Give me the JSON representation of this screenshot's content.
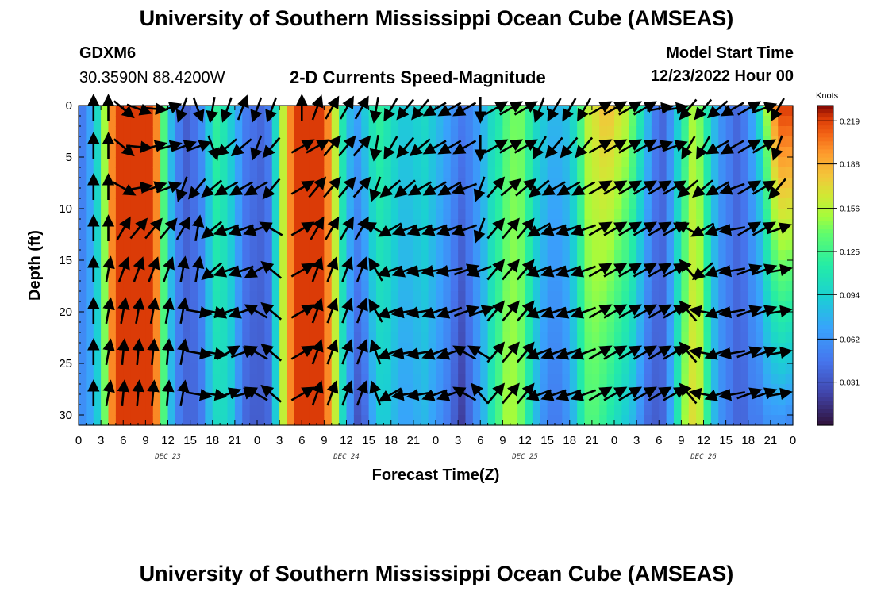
{
  "page": {
    "title_top": "University of Southern Mississippi Ocean Cube (AMSEAS)",
    "title_bottom": "University of Southern Mississippi Ocean Cube (AMSEAS)",
    "station_id": "GDXM6",
    "coordinates": "30.3590N  88.4200W",
    "plot_title": "2-D Currents Speed-Magnitude",
    "model_start_label": "Model Start Time",
    "model_start_value": "12/23/2022 Hour 00"
  },
  "chart_data": {
    "type": "heatmap",
    "title": "2-D Currents Speed-Magnitude",
    "xlabel": "Forecast Time(Z)",
    "ylabel": "Depth (ft)",
    "xlim": [
      0,
      96
    ],
    "ylim": [
      0,
      31
    ],
    "y_inverted": true,
    "x_tick_values": [
      0,
      3,
      6,
      9,
      12,
      15,
      18,
      21,
      24,
      27,
      30,
      33,
      36,
      39,
      42,
      45,
      48,
      51,
      54,
      57,
      60,
      63,
      66,
      69,
      72,
      75,
      78,
      81,
      84,
      87,
      90,
      93,
      96
    ],
    "x_tick_labels": [
      "0",
      "3",
      "6",
      "9",
      "12",
      "15",
      "18",
      "21",
      "0",
      "3",
      "6",
      "9",
      "12",
      "15",
      "18",
      "21",
      "0",
      "3",
      "6",
      "9",
      "12",
      "15",
      "18",
      "21",
      "0",
      "3",
      "6",
      "9",
      "12",
      "15",
      "18",
      "21",
      "0"
    ],
    "day_labels": [
      {
        "text": "DEC 23",
        "hour": 12
      },
      {
        "text": "DEC 24",
        "hour": 36
      },
      {
        "text": "DEC 25",
        "hour": 60
      },
      {
        "text": "DEC 26",
        "hour": 84
      }
    ],
    "y_tick_values": [
      0,
      5,
      10,
      15,
      20,
      25,
      30
    ],
    "y_tick_labels": [
      "0",
      "5",
      "10",
      "15",
      "20",
      "25",
      "30"
    ],
    "colorbar": {
      "unit": "Knots",
      "min": 0.0,
      "max": 0.23,
      "tick_values": [
        0.031,
        0.062,
        0.094,
        0.125,
        0.156,
        0.188,
        0.219
      ],
      "tick_labels": [
        "0.031",
        "0.062",
        "0.094",
        "0.125",
        "0.156",
        "0.188",
        "0.219"
      ]
    },
    "speed_profile_hours": [
      0,
      1,
      2,
      3,
      4,
      5,
      6,
      7,
      8,
      9,
      10,
      11,
      12,
      13,
      14,
      15,
      16,
      17,
      18,
      19,
      20,
      21,
      22,
      23,
      24,
      25,
      26,
      27,
      28,
      29,
      30,
      31,
      32,
      33,
      34,
      35,
      36,
      37,
      38,
      39,
      40,
      41,
      42,
      43,
      44,
      45,
      46,
      47,
      48,
      49,
      50,
      51,
      52,
      53,
      54,
      55,
      56,
      57,
      58,
      59,
      60,
      61,
      62,
      63,
      64,
      65,
      66,
      67,
      68,
      69,
      70,
      71,
      72,
      73,
      74,
      75,
      76,
      77,
      78,
      79,
      80,
      81,
      82,
      83,
      84,
      85,
      86,
      87,
      88,
      89,
      90,
      91,
      92,
      93,
      94,
      95,
      96
    ],
    "speed_surface": [
      0.05,
      0.07,
      0.1,
      0.15,
      0.2,
      0.22,
      0.22,
      0.22,
      0.22,
      0.22,
      0.2,
      0.13,
      0.08,
      0.05,
      0.035,
      0.045,
      0.06,
      0.09,
      0.12,
      0.11,
      0.09,
      0.07,
      0.05,
      0.045,
      0.04,
      0.05,
      0.1,
      0.16,
      0.2,
      0.22,
      0.22,
      0.22,
      0.22,
      0.2,
      0.16,
      0.11,
      0.08,
      0.07,
      0.09,
      0.11,
      0.12,
      0.11,
      0.1,
      0.09,
      0.09,
      0.095,
      0.1,
      0.09,
      0.08,
      0.07,
      0.06,
      0.05,
      0.055,
      0.065,
      0.08,
      0.1,
      0.11,
      0.13,
      0.14,
      0.14,
      0.12,
      0.1,
      0.09,
      0.08,
      0.08,
      0.085,
      0.1,
      0.13,
      0.16,
      0.17,
      0.18,
      0.18,
      0.17,
      0.16,
      0.14,
      0.11,
      0.08,
      0.05,
      0.04,
      0.06,
      0.09,
      0.12,
      0.15,
      0.14,
      0.11,
      0.08,
      0.06,
      0.05,
      0.04,
      0.05,
      0.07,
      0.1,
      0.15,
      0.2,
      0.22,
      0.22,
      0.21
    ],
    "speed_bottom": [
      0.06,
      0.07,
      0.09,
      0.14,
      0.2,
      0.22,
      0.22,
      0.22,
      0.22,
      0.22,
      0.2,
      0.13,
      0.08,
      0.05,
      0.04,
      0.04,
      0.05,
      0.08,
      0.1,
      0.1,
      0.09,
      0.06,
      0.04,
      0.035,
      0.035,
      0.04,
      0.09,
      0.16,
      0.2,
      0.22,
      0.22,
      0.22,
      0.22,
      0.2,
      0.16,
      0.1,
      0.06,
      0.03,
      0.04,
      0.07,
      0.09,
      0.09,
      0.08,
      0.07,
      0.07,
      0.075,
      0.08,
      0.07,
      0.06,
      0.05,
      0.035,
      0.02,
      0.04,
      0.06,
      0.08,
      0.11,
      0.13,
      0.15,
      0.15,
      0.14,
      0.11,
      0.08,
      0.06,
      0.05,
      0.05,
      0.06,
      0.08,
      0.11,
      0.13,
      0.13,
      0.12,
      0.11,
      0.1,
      0.09,
      0.08,
      0.06,
      0.04,
      0.035,
      0.04,
      0.07,
      0.11,
      0.15,
      0.17,
      0.16,
      0.12,
      0.08,
      0.06,
      0.05,
      0.04,
      0.04,
      0.05,
      0.05,
      0.06,
      0.06,
      0.06,
      0.055,
      0.05
    ],
    "arrow_depths_ft": [
      0,
      4,
      8,
      12,
      16,
      20,
      24,
      28
    ],
    "arrow_columns": [
      {
        "hour": 2,
        "dirs": [
          0,
          0,
          0,
          0,
          0,
          0,
          0,
          0
        ]
      },
      {
        "hour": 4,
        "dirs": [
          0,
          0,
          0,
          0,
          10,
          10,
          10,
          10
        ]
      },
      {
        "hour": 6,
        "dirs": [
          130,
          130,
          120,
          30,
          20,
          10,
          5,
          5
        ]
      },
      {
        "hour": 8,
        "dirs": [
          110,
          95,
          80,
          40,
          20,
          10,
          5,
          5
        ]
      },
      {
        "hour": 10,
        "dirs": [
          95,
          75,
          70,
          40,
          20,
          10,
          5,
          5
        ]
      },
      {
        "hour": 12,
        "dirs": [
          70,
          75,
          70,
          40,
          20,
          10,
          5,
          5
        ]
      },
      {
        "hour": 14,
        "dirs": [
          200,
          70,
          200,
          30,
          10,
          10,
          10,
          10
        ]
      },
      {
        "hour": 16,
        "dirs": [
          160,
          70,
          220,
          10,
          10,
          100,
          100,
          100
        ]
      },
      {
        "hour": 18,
        "dirs": [
          190,
          160,
          230,
          230,
          230,
          100,
          100,
          100
        ]
      },
      {
        "hour": 20,
        "dirs": [
          200,
          230,
          240,
          250,
          250,
          250,
          60,
          70
        ]
      },
      {
        "hour": 22,
        "dirs": [
          20,
          230,
          240,
          250,
          250,
          250,
          70,
          75
        ]
      },
      {
        "hour": 24,
        "dirs": [
          200,
          200,
          240,
          250,
          240,
          300,
          300,
          300
        ]
      },
      {
        "hour": 26,
        "dirs": [
          200,
          220,
          220,
          300,
          310,
          310,
          310,
          310
        ]
      },
      {
        "hour": 30,
        "dirs": [
          0,
          60,
          60,
          60,
          60,
          60,
          60,
          60
        ]
      },
      {
        "hour": 32,
        "dirs": [
          20,
          60,
          40,
          30,
          20,
          20,
          20,
          20
        ]
      },
      {
        "hour": 34,
        "dirs": [
          30,
          40,
          40,
          30,
          20,
          20,
          20,
          20
        ]
      },
      {
        "hour": 36,
        "dirs": [
          30,
          40,
          40,
          30,
          20,
          20,
          20,
          20
        ]
      },
      {
        "hour": 38,
        "dirs": [
          30,
          40,
          40,
          30,
          20,
          20,
          20,
          20
        ]
      },
      {
        "hour": 40,
        "dirs": [
          190,
          190,
          200,
          300,
          330,
          330,
          340,
          340
        ]
      },
      {
        "hour": 42,
        "dirs": [
          210,
          210,
          230,
          240,
          250,
          250,
          250,
          240
        ]
      },
      {
        "hour": 44,
        "dirs": [
          220,
          220,
          230,
          250,
          250,
          260,
          260,
          260
        ]
      },
      {
        "hour": 46,
        "dirs": [
          220,
          230,
          240,
          250,
          260,
          260,
          260,
          260
        ]
      },
      {
        "hour": 48,
        "dirs": [
          240,
          240,
          240,
          250,
          260,
          250,
          250,
          250
        ]
      },
      {
        "hour": 50,
        "dirs": [
          240,
          240,
          240,
          250,
          260,
          250,
          250,
          250
        ]
      },
      {
        "hour": 52,
        "dirs": [
          240,
          240,
          250,
          250,
          70,
          70,
          300,
          300
        ]
      },
      {
        "hour": 54,
        "dirs": [
          180,
          180,
          200,
          200,
          250,
          70,
          300,
          320
        ]
      },
      {
        "hour": 56,
        "dirs": [
          60,
          60,
          40,
          40,
          40,
          40,
          40,
          40
        ]
      },
      {
        "hour": 58,
        "dirs": [
          60,
          60,
          50,
          40,
          40,
          40,
          40,
          40
        ]
      },
      {
        "hour": 60,
        "dirs": [
          60,
          60,
          50,
          40,
          40,
          40,
          40,
          40
        ]
      },
      {
        "hour": 62,
        "dirs": [
          200,
          210,
          230,
          240,
          250,
          250,
          250,
          250
        ]
      },
      {
        "hour": 64,
        "dirs": [
          210,
          220,
          240,
          250,
          250,
          250,
          250,
          250
        ]
      },
      {
        "hour": 66,
        "dirs": [
          210,
          220,
          240,
          250,
          250,
          250,
          250,
          250
        ]
      },
      {
        "hour": 68,
        "dirs": [
          210,
          220,
          240,
          250,
          250,
          250,
          250,
          250
        ]
      },
      {
        "hour": 70,
        "dirs": [
          60,
          60,
          60,
          60,
          60,
          60,
          60,
          60
        ]
      },
      {
        "hour": 72,
        "dirs": [
          60,
          60,
          60,
          60,
          60,
          60,
          60,
          60
        ]
      },
      {
        "hour": 74,
        "dirs": [
          60,
          60,
          60,
          60,
          60,
          60,
          60,
          60
        ]
      },
      {
        "hour": 76,
        "dirs": [
          60,
          60,
          60,
          60,
          60,
          60,
          60,
          60
        ]
      },
      {
        "hour": 78,
        "dirs": [
          80,
          70,
          60,
          60,
          60,
          60,
          60,
          60
        ]
      },
      {
        "hour": 80,
        "dirs": [
          80,
          70,
          60,
          60,
          60,
          60,
          60,
          60
        ]
      },
      {
        "hour": 82,
        "dirs": [
          220,
          210,
          230,
          300,
          320,
          320,
          320,
          320
        ]
      },
      {
        "hour": 84,
        "dirs": [
          220,
          210,
          230,
          240,
          230,
          280,
          280,
          280
        ]
      },
      {
        "hour": 86,
        "dirs": [
          230,
          240,
          240,
          250,
          250,
          250,
          250,
          250
        ]
      },
      {
        "hour": 88,
        "dirs": [
          240,
          240,
          250,
          260,
          260,
          260,
          260,
          260
        ]
      },
      {
        "hour": 90,
        "dirs": [
          60,
          60,
          60,
          60,
          70,
          70,
          70,
          70
        ]
      },
      {
        "hour": 92,
        "dirs": [
          70,
          60,
          60,
          60,
          70,
          70,
          70,
          70
        ]
      },
      {
        "hour": 94,
        "dirs": [
          210,
          200,
          220,
          70,
          80,
          80,
          80,
          80
        ]
      }
    ]
  }
}
